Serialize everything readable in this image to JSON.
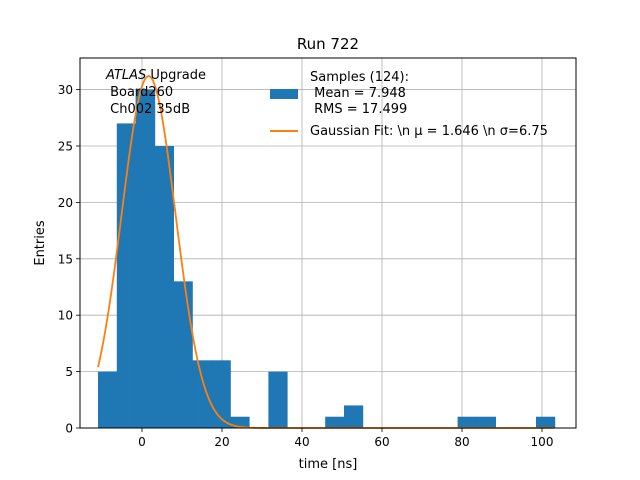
{
  "chart_data": {
    "type": "bar",
    "title": "Run 722",
    "xlabel": "time [ns]",
    "ylabel": "Entries",
    "xlim": [
      -15.5,
      108.5
    ],
    "ylim": [
      0,
      32.8
    ],
    "xticks": [
      0,
      20,
      40,
      60,
      80,
      100
    ],
    "yticks": [
      0,
      5,
      10,
      15,
      20,
      25,
      30
    ],
    "grid": true,
    "bar_color": "#1f77b4",
    "fit_color": "#ff7f0e",
    "annotation": {
      "experiment": "ATLAS",
      "experiment_suffix": " Upgrade",
      "line2": " Board260",
      "line3": " Ch002 35dB"
    },
    "legend": {
      "placement": "top-right",
      "histogram_label": "Samples (124):",
      "histogram_label_line2": " Mean = 7.948",
      "histogram_label_line3": " RMS = 17.499",
      "fit_label": "Gaussian Fit: \\n μ = 1.646 \\n σ=6.75"
    },
    "histogram": {
      "bins": [
        {
          "x0": -11.0,
          "x1": -6.3,
          "count": 5
        },
        {
          "x0": -6.3,
          "x1": -1.6,
          "count": 27
        },
        {
          "x0": -1.6,
          "x1": 3.2,
          "count": 30
        },
        {
          "x0": 3.2,
          "x1": 7.9,
          "count": 25
        },
        {
          "x0": 7.9,
          "x1": 12.6,
          "count": 13
        },
        {
          "x0": 12.6,
          "x1": 17.4,
          "count": 6
        },
        {
          "x0": 17.4,
          "x1": 22.1,
          "count": 6
        },
        {
          "x0": 22.1,
          "x1": 26.8,
          "count": 1
        },
        {
          "x0": 31.6,
          "x1": 36.3,
          "count": 5
        },
        {
          "x0": 45.8,
          "x1": 50.5,
          "count": 1
        },
        {
          "x0": 50.5,
          "x1": 55.2,
          "count": 2
        },
        {
          "x0": 78.9,
          "x1": 83.6,
          "count": 1
        },
        {
          "x0": 83.6,
          "x1": 88.4,
          "count": 1
        },
        {
          "x0": 98.5,
          "x1": 103.2,
          "count": 1
        }
      ]
    },
    "fit": {
      "amplitude": 31.2,
      "mean": 1.646,
      "sigma": 6.75,
      "x_range": [
        -11.0,
        103.0
      ]
    }
  }
}
